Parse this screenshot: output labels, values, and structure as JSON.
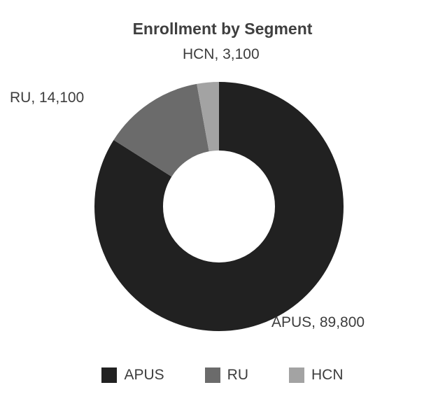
{
  "chart_data": {
    "type": "pie",
    "subtype": "donut",
    "title": "Enrollment by Segment",
    "categories": [
      "APUS",
      "RU",
      "HCN"
    ],
    "values": [
      89800,
      14100,
      3100
    ],
    "colors": [
      "#212121",
      "#6b6b6b",
      "#a3a3a3"
    ],
    "data_labels": [
      "APUS, 89,800",
      "RU, 14,100",
      "HCN, 3,100"
    ],
    "start_angle_deg": 0,
    "direction": "clockwise",
    "inner_radius_ratio": 0.45,
    "legend_position": "bottom"
  },
  "legend": {
    "items": [
      {
        "label": "APUS",
        "color": "#212121"
      },
      {
        "label": "RU",
        "color": "#6b6b6b"
      },
      {
        "label": "HCN",
        "color": "#a3a3a3"
      }
    ]
  }
}
